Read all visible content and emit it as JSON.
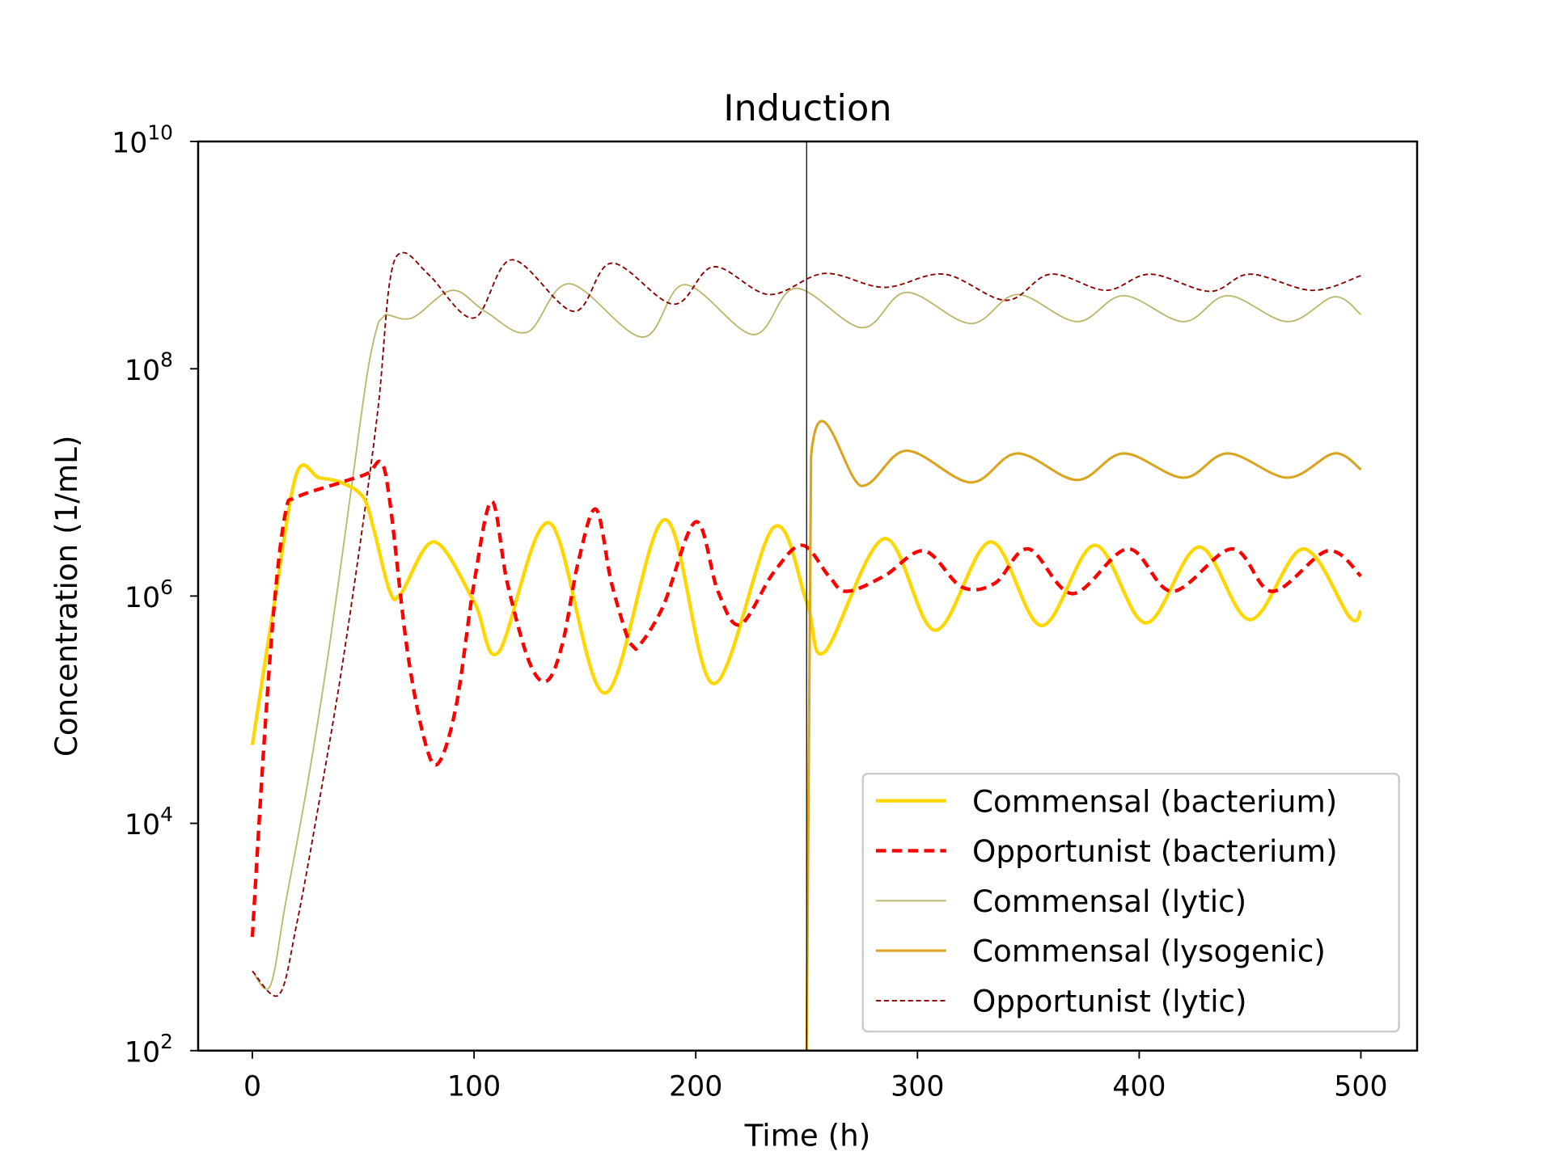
{
  "chart_data": {
    "type": "line",
    "title": "Induction",
    "xlabel": "Time (h)",
    "ylabel": "Concentration (1/mL)",
    "yscale": "log",
    "xlim": [
      -25,
      525
    ],
    "ylim": [
      100,
      10000000000
    ],
    "xticks": [
      0,
      100,
      200,
      300,
      400,
      500
    ],
    "yticks": [
      {
        "base": "10",
        "exp": "2",
        "value": 100
      },
      {
        "base": "10",
        "exp": "4",
        "value": 10000
      },
      {
        "base": "10",
        "exp": "6",
        "value": 1000000
      },
      {
        "base": "10",
        "exp": "8",
        "value": 100000000
      },
      {
        "base": "10",
        "exp": "10",
        "value": 10000000000
      }
    ],
    "grid": false,
    "legend_position": "lower-right",
    "vline": {
      "x": 250,
      "color": "#000000"
    },
    "series": [
      {
        "name": "Commensal (bacterium)",
        "color": "#FFD700",
        "style": "solid",
        "width": "thick",
        "x": [
          0,
          10,
          20,
          30,
          40,
          50,
          55,
          62,
          67,
          82,
          100,
          111,
          134,
          159,
          186,
          208,
          235,
          250,
          258,
          285,
          308,
          333,
          356,
          380,
          403,
          427,
          450,
          474,
          495,
          500
        ],
        "y": [
          49000.0,
          890000.0,
          12000000.0,
          11000000.0,
          10000000.0,
          7400000.0,
          3700000.0,
          1100000.0,
          1050000.0,
          3000000.0,
          890000.0,
          320000.0,
          4400000.0,
          140000.0,
          4700000.0,
          170000.0,
          4000000.0,
          890000.0,
          320000.0,
          3200000.0,
          500000.0,
          3000000.0,
          550000.0,
          2800000.0,
          580000.0,
          2700000.0,
          620000.0,
          2600000.0,
          650000.0,
          740000.0
        ]
      },
      {
        "name": "Opportunist (bacterium)",
        "color": "#FF0000",
        "style": "dashed",
        "width": "thick",
        "x": [
          0,
          5,
          10,
          15,
          20,
          40,
          52,
          58,
          62,
          70,
          78,
          84,
          92,
          100,
          108,
          115,
          125,
          133,
          140,
          147,
          155,
          162,
          170,
          173,
          185,
          200,
          210,
          220,
          235,
          248,
          260,
          268,
          285,
          303,
          320,
          335,
          350,
          370,
          395,
          415,
          442,
          460,
          485,
          500
        ],
        "y": [
          1000.0,
          42000.0,
          890000.0,
          5500000.0,
          7400000.0,
          10000000.0,
          12000000.0,
          15000000.0,
          6800000.0,
          320000.0,
          51000.0,
          34000.0,
          110000.0,
          1300000.0,
          6800000.0,
          1300000.0,
          260000.0,
          180000.0,
          390000.0,
          2000000.0,
          5800000.0,
          1300000.0,
          390000.0,
          340000.0,
          790000.0,
          4500000.0,
          1100000.0,
          560000.0,
          1600000.0,
          2800000.0,
          1500000.0,
          1100000.0,
          1500000.0,
          2500000.0,
          1200000.0,
          1300000.0,
          2600000.0,
          1050000.0,
          2600000.0,
          1100000.0,
          2600000.0,
          1100000.0,
          2500000.0,
          1500000.0
        ]
      },
      {
        "name": "Commensal (lytic)",
        "color": "#BDB76B",
        "style": "solid",
        "width": "thin",
        "x": [
          0,
          8,
          15,
          25,
          35,
          45,
          52,
          57,
          60,
          72,
          90,
          105,
          124,
          143,
          176,
          195,
          226,
          245,
          275,
          295,
          324,
          345,
          372,
          393,
          420,
          440,
          467,
          488,
          500
        ],
        "y": [
          500.0,
          370.0,
          2000.0,
          23000.0,
          390000.0,
          10000000.0,
          95000000.0,
          260000000.0,
          300000000.0,
          280000000.0,
          490000000.0,
          320000000.0,
          210000000.0,
          560000000.0,
          190000000.0,
          550000000.0,
          200000000.0,
          510000000.0,
          230000000.0,
          470000000.0,
          250000000.0,
          450000000.0,
          260000000.0,
          440000000.0,
          260000000.0,
          440000000.0,
          260000000.0,
          430000000.0,
          300000000.0
        ]
      },
      {
        "name": "Commensal (lysogenic)",
        "color": "#DAA520",
        "style": "solid",
        "width": "medium",
        "x": [
          250,
          252,
          275,
          295,
          324,
          345,
          372,
          393,
          420,
          440,
          467,
          488,
          500
        ],
        "y": [
          100.0,
          17000000.0,
          9300000.0,
          19000000.0,
          10000000.0,
          18000000.0,
          10500000.0,
          18000000.0,
          11000000.0,
          18000000.0,
          11000000.0,
          18000000.0,
          13000000.0
        ]
      },
      {
        "name": "Opportunist (lytic)",
        "color": "#8B0000",
        "style": "dotted",
        "width": "thin",
        "x": [
          0,
          12,
          20,
          30,
          40,
          50,
          57,
          62,
          68,
          80,
          100,
          117,
          145,
          162,
          190,
          208,
          233,
          258,
          285,
          312,
          340,
          360,
          385,
          405,
          432,
          450,
          478,
          500
        ],
        "y": [
          500.0,
          310.0,
          1300.0,
          15000.0,
          210000.0,
          4500000.0,
          51000000.0,
          590000000.0,
          1050000000.0,
          660000000.0,
          280000000.0,
          910000000.0,
          320000000.0,
          850000000.0,
          370000000.0,
          790000000.0,
          450000000.0,
          690000000.0,
          520000000.0,
          680000000.0,
          400000000.0,
          680000000.0,
          490000000.0,
          680000000.0,
          480000000.0,
          680000000.0,
          490000000.0,
          660000000.0
        ]
      }
    ]
  }
}
